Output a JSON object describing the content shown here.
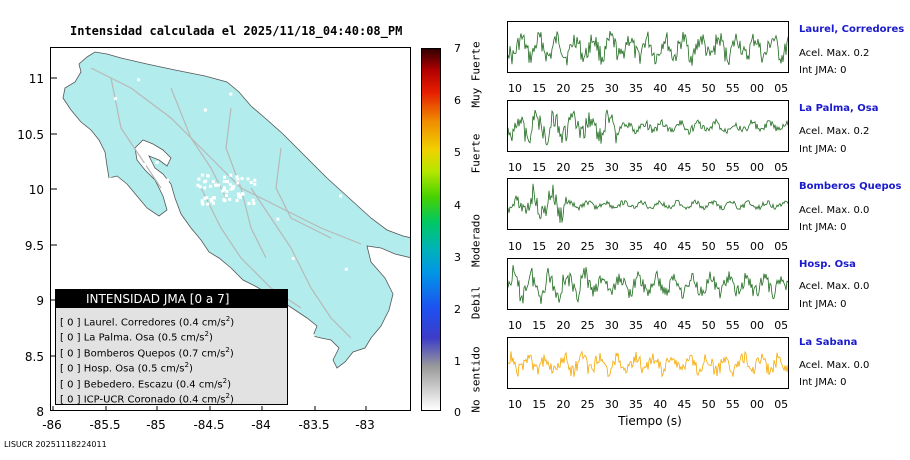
{
  "map": {
    "title": "Intensidad calculada el 2025/11/18_04:40:08_PM",
    "y_ticks": [
      "11",
      "10.5",
      "10",
      "9.5",
      "9",
      "8.5",
      "8"
    ],
    "x_ticks": [
      "-86",
      "-85.5",
      "-85",
      "-84.5",
      "-84",
      "-83.5",
      "-83"
    ],
    "land_color": "#b3ecec",
    "roads_color": "#b8b8b8"
  },
  "legend": {
    "title": "INTENSIDAD JMA [0 a 7]",
    "rows": [
      {
        "level": "[ 0 ]",
        "label": "Laurel. Corredores (0.4 cm/s",
        "sup": "2",
        "end": ")"
      },
      {
        "level": "[ 0 ]",
        "label": "La Palma. Osa (0.5 cm/s",
        "sup": "2",
        "end": ")"
      },
      {
        "level": "[ 0 ]",
        "label": "Bomberos Quepos (0.7 cm/s",
        "sup": "2",
        "end": ")"
      },
      {
        "level": "[ 0 ]",
        "label": "Hosp. Osa (0.5 cm/s",
        "sup": "2",
        "end": ")"
      },
      {
        "level": "[ 0 ]",
        "label": "Bebedero. Escazu (0.4 cm/s",
        "sup": "2",
        "end": ")"
      },
      {
        "level": "[ 0 ]",
        "label": "ICP-UCR Coronado (0.4 cm/s",
        "sup": "2",
        "end": ")"
      }
    ]
  },
  "colorbar": {
    "ticks": [
      "7",
      "6",
      "5",
      "4",
      "3",
      "2",
      "1",
      "0"
    ],
    "descriptors": [
      "Muy Fuerte",
      "Fuerte",
      "Moderado",
      "Debil",
      "No sentido"
    ]
  },
  "waveforms": {
    "x_ticks": [
      "10",
      "15",
      "20",
      "25",
      "30",
      "35",
      "40",
      "45",
      "50",
      "55",
      "00",
      "05"
    ],
    "x_title": "Tiempo (s)",
    "stations": [
      {
        "name": "Laurel, Corredores",
        "acel": "Acel. Max. 0.2",
        "jma": "Int JMA: 0",
        "color": "#1f6b1f"
      },
      {
        "name": "La Palma, Osa",
        "acel": "Acel. Max. 0.2",
        "jma": "Int JMA: 0",
        "color": "#1f6b1f"
      },
      {
        "name": "Bomberos Quepos",
        "acel": "Acel. Max. 0.0",
        "jma": "Int JMA: 0",
        "color": "#1f6b1f"
      },
      {
        "name": "Hosp. Osa",
        "acel": "Acel. Max. 0.0",
        "jma": "Int JMA: 0",
        "color": "#1f6b1f"
      },
      {
        "name": "La Sabana",
        "acel": "Acel. Max. 0.0",
        "jma": "Int JMA: 0",
        "color": "#f5a800"
      }
    ]
  },
  "footer": "LISUCR 20251118224011"
}
